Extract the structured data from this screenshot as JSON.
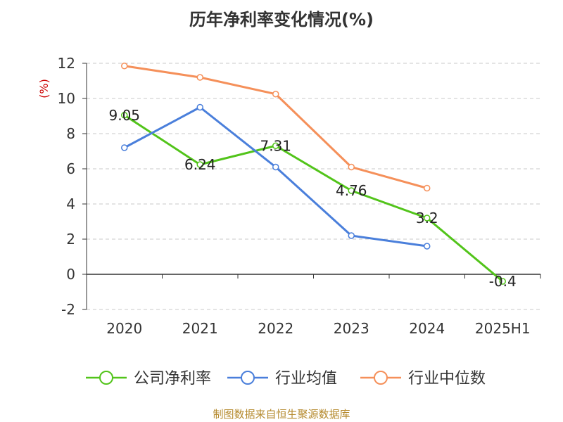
{
  "chart_data": {
    "type": "line",
    "title": "历年净利率变化情况(%)",
    "ylabel": "(%)",
    "categories": [
      "2020",
      "2021",
      "2022",
      "2023",
      "2024",
      "2025H1"
    ],
    "ylim": [
      -2,
      12
    ],
    "yticks": [
      12,
      10,
      8,
      6,
      4,
      2,
      0,
      -2
    ],
    "grid": true,
    "legend_position": "bottom",
    "series": [
      {
        "name": "公司净利率",
        "color": "#52c41a",
        "values": [
          9.05,
          6.24,
          7.31,
          4.76,
          3.2,
          -0.4
        ],
        "labels": [
          "9.05",
          "6.24",
          "7.31",
          "4.76",
          "3.2",
          "-0.4"
        ]
      },
      {
        "name": "行业均值",
        "color": "#4a7fdb",
        "values": [
          7.2,
          9.5,
          6.1,
          2.2,
          1.6,
          null
        ]
      },
      {
        "name": "行业中位数",
        "color": "#f5905a",
        "values": [
          11.85,
          11.2,
          10.25,
          6.1,
          4.9,
          null
        ]
      }
    ]
  },
  "source_text": "制图数据来自恒生聚源数据库",
  "colors": {
    "title": "#333333",
    "ylabel": "#cc0000",
    "source": "#b58a2e",
    "axis": "#333333",
    "grid": "#c8c8c8"
  }
}
